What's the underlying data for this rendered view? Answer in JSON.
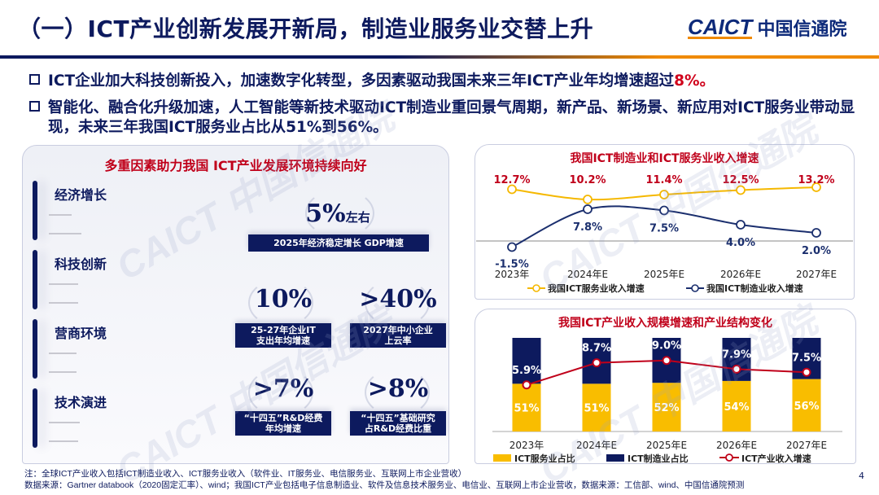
{
  "header": {
    "title": "（一）ICT产业创新发展开新局，制造业服务业交替上升",
    "logo_en": "CAICT",
    "logo_cn": "中国信通院"
  },
  "bullets": [
    {
      "text": "ICT企业加大科技创新投入，加速数字化转型，多因素驱动我国未来三年ICT产业年均增速超过",
      "highlight": "8%。"
    },
    {
      "text": "智能化、融合化升级加速，人工智能等新技术驱动ICT制造业重回景气周期，新产品、新场景、新应用对ICT服务业带动显现，未来三年我国ICT服务业占比从51%到56%。",
      "highlight": ""
    }
  ],
  "left_panel": {
    "title": "多重因素助力我国 ICT产业发展环境持续向好",
    "sections": [
      "经济增长",
      "科技创新",
      "营商环境",
      "技术演进"
    ],
    "stats": [
      {
        "value": "5%",
        "suffix": "左右",
        "label": "2025年经济稳定增长 GDP增速"
      },
      {
        "value": "10%",
        "suffix": "",
        "label": "25-27年企业IT\n支出年均增速"
      },
      {
        "value": ">40%",
        "suffix": "",
        "label": "2027年中小企业\n上云率"
      },
      {
        "value": ">7%",
        "suffix": "",
        "label": "“十四五”R&D经费\n年均增速"
      },
      {
        "value": ">8%",
        "suffix": "",
        "label": "“十四五”基础研究\n占R&D经费比重"
      }
    ]
  },
  "chart_data": [
    {
      "type": "line",
      "title": "我国ICT制造业和ICT服务业收入增速",
      "categories": [
        "2023年",
        "2024年E",
        "2025年E",
        "2026年E",
        "2027年E"
      ],
      "series": [
        {
          "name": "我国ICT服务业收入增速",
          "values": [
            12.7,
            10.2,
            11.4,
            12.5,
            13.2
          ],
          "labels": [
            "12.7%",
            "10.2%",
            "11.4%",
            "12.5%",
            "13.2%"
          ],
          "color": "#f5b800"
        },
        {
          "name": "我国ICT制造业收入增速",
          "values": [
            -1.5,
            7.8,
            7.5,
            4.0,
            2.0
          ],
          "labels": [
            "-1.5%",
            "7.8%",
            "7.5%",
            "4.0%",
            "2.0%"
          ],
          "color": "#1b2f6e"
        }
      ],
      "legend": "bottom"
    },
    {
      "type": "bar",
      "stacked": true,
      "title": "我国ICT产业收入规模增速和产业结构变化",
      "categories": [
        "2023年",
        "2024年E",
        "2025年E",
        "2026年E",
        "2027年E"
      ],
      "series": [
        {
          "name": "ICT服务业占比",
          "values": [
            51,
            51,
            52,
            54,
            56
          ],
          "labels": [
            "51%",
            "51%",
            "52%",
            "54%",
            "56%"
          ],
          "color": "#f9bd00"
        },
        {
          "name": "ICT制造业占比",
          "values": [
            49,
            49,
            48,
            46,
            44
          ],
          "color": "#0d1a5e"
        },
        {
          "name": "ICT产业收入增速",
          "type": "line",
          "values": [
            5.9,
            8.7,
            9.0,
            7.9,
            7.5
          ],
          "labels": [
            "5.9%",
            "8.7%",
            "9.0%",
            "7.9%",
            "7.5%"
          ],
          "color": "#c0001a"
        }
      ],
      "legend": "bottom"
    }
  ],
  "footer": {
    "note": "注：全球ICT产业收入包括ICT制造业收入、ICT服务业收入（软件业、IT服务业、电信服务业、互联网上市企业营收）",
    "source": "数据来源：Gartner databook（2020固定汇率）、wind；我国ICT产业包括电子信息制造业、软件及信息技术服务业、电信业、互联网上市企业营收，数据来源：工信部、wind、中国信通院预测",
    "page": "4"
  }
}
